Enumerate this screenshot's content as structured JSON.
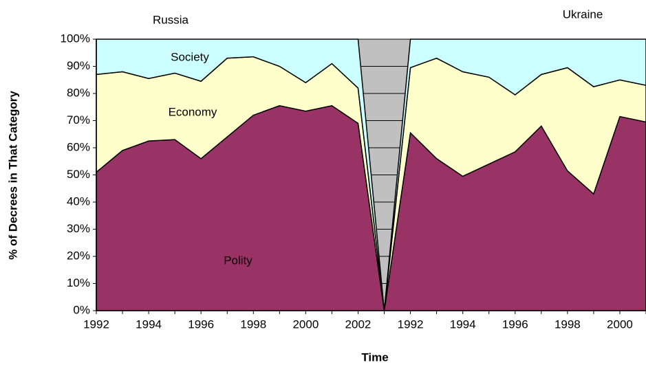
{
  "chart_data": {
    "type": "stacked_area_percent",
    "y_axis_label": "% of Decrees in That Category",
    "x_axis_label": "Time",
    "annotations": [
      "Russia",
      "Ukraine",
      "Society",
      "Economy",
      "Polity"
    ],
    "categories": [
      "1992",
      null,
      "1994",
      null,
      "1996",
      null,
      "1998",
      null,
      "2000",
      null,
      "2002",
      null,
      "1992",
      null,
      "1994",
      null,
      "1996",
      null,
      "1998",
      null,
      "2000",
      null
    ],
    "series": [
      {
        "name": "Polity",
        "color": "#993366",
        "values": [
          51,
          59,
          62.5,
          63,
          56,
          64,
          72,
          75.5,
          73.5,
          75.5,
          69,
          0,
          65.5,
          56,
          49.5,
          54,
          58.5,
          68,
          51.5,
          43,
          71.5,
          69.5
        ]
      },
      {
        "name": "Economy",
        "color": "#ffffcc",
        "values": [
          36,
          29,
          23,
          24.5,
          28.5,
          29,
          21.5,
          14.5,
          10.5,
          15.5,
          13,
          0,
          24,
          37,
          38.5,
          32,
          21,
          19,
          38,
          39.5,
          13.5,
          13.5
        ]
      },
      {
        "name": "Society",
        "color": "#ccffff",
        "values": [
          13,
          12,
          14.5,
          12.5,
          15.5,
          7,
          6.5,
          10,
          16,
          9,
          18,
          0,
          10.5,
          7,
          12,
          14,
          20.5,
          13,
          10.5,
          17.5,
          15,
          17
        ]
      }
    ],
    "plot_background": "#c0c0c0",
    "ylim": [
      0,
      100
    ],
    "yticks": [
      {
        "value": 0,
        "label": "0%"
      },
      {
        "value": 10,
        "label": "10%"
      },
      {
        "value": 20,
        "label": "20%"
      },
      {
        "value": 30,
        "label": "30%"
      },
      {
        "value": 40,
        "label": "40%"
      },
      {
        "value": 50,
        "label": "50%"
      },
      {
        "value": 60,
        "label": "60%"
      },
      {
        "value": 70,
        "label": "70%"
      },
      {
        "value": 80,
        "label": "80%"
      },
      {
        "value": 90,
        "label": "90%"
      },
      {
        "value": 100,
        "label": "100%"
      }
    ],
    "grid": true
  }
}
